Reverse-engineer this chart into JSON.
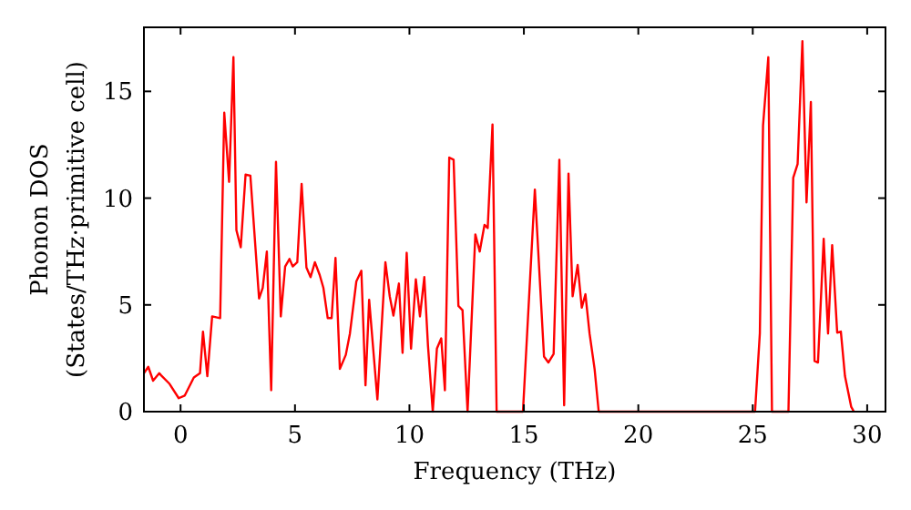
{
  "chart_data": {
    "type": "line",
    "xlabel": "Frequency (THz)",
    "ylabel": "Phonon DOS\n(States/THz·primitive cell)",
    "xlim": [
      -1.6,
      30.8
    ],
    "ylim": [
      0,
      18
    ],
    "xticks": [
      0,
      5,
      10,
      15,
      20,
      25,
      30
    ],
    "yticks": [
      0,
      5,
      10,
      15
    ],
    "grid": false,
    "marker": "none",
    "line_style": "solid",
    "series": [
      {
        "color": "#ff0000",
        "x": [
          -1.6,
          -1.41,
          -1.2,
          -0.93,
          -0.85,
          -0.48,
          -0.08,
          0.18,
          0.58,
          0.85,
          0.98,
          1.17,
          1.38,
          1.73,
          1.91,
          2.12,
          2.31,
          2.44,
          2.63,
          2.84,
          3.05,
          3.43,
          3.59,
          3.77,
          3.96,
          4.17,
          4.38,
          4.57,
          4.76,
          4.9,
          5.1,
          5.29,
          5.5,
          5.68,
          5.87,
          6.08,
          6.24,
          6.43,
          6.6,
          6.77,
          6.96,
          7.22,
          7.4,
          7.68,
          7.9,
          8.08,
          8.24,
          8.6,
          8.95,
          9.14,
          9.3,
          9.54,
          9.7,
          9.88,
          10.07,
          10.28,
          10.46,
          10.65,
          10.81,
          11.02,
          11.2,
          11.39,
          11.55,
          11.74,
          11.93,
          12.14,
          12.32,
          12.54,
          12.88,
          13.07,
          13.28,
          13.42,
          13.63,
          13.81,
          14.96,
          15.48,
          15.88,
          16.07,
          16.3,
          16.55,
          16.76,
          16.95,
          17.13,
          17.35,
          17.53,
          17.69,
          17.87,
          18.09,
          18.27,
          25.1,
          25.31,
          25.45,
          25.68,
          25.84,
          26.56,
          26.77,
          26.96,
          27.17,
          27.35,
          27.54,
          27.7,
          27.85,
          28.1,
          28.29,
          28.47,
          28.69,
          28.85,
          29.03,
          29.3,
          29.42
        ],
        "values": [
          1.8,
          2.1,
          1.45,
          1.8,
          1.7,
          1.3,
          0.63,
          0.75,
          1.6,
          1.8,
          3.75,
          1.66,
          4.46,
          4.38,
          14.0,
          10.76,
          16.6,
          8.5,
          7.7,
          11.1,
          11.05,
          5.3,
          5.8,
          7.5,
          1.0,
          11.7,
          4.46,
          6.8,
          7.15,
          6.8,
          7.0,
          10.67,
          6.75,
          6.3,
          7.0,
          6.4,
          5.8,
          4.38,
          4.38,
          7.2,
          2.0,
          2.66,
          3.66,
          6.1,
          6.6,
          1.23,
          5.24,
          0.57,
          7.0,
          5.4,
          4.5,
          6.0,
          2.75,
          7.44,
          2.95,
          6.2,
          4.46,
          6.3,
          3.1,
          0,
          2.95,
          3.43,
          1.0,
          11.9,
          11.8,
          4.95,
          4.75,
          0,
          8.3,
          7.5,
          8.75,
          8.6,
          13.45,
          0,
          0,
          10.4,
          2.58,
          2.3,
          2.7,
          11.8,
          0.3,
          11.15,
          5.4,
          6.87,
          4.87,
          5.5,
          3.66,
          2.0,
          0,
          0,
          3.66,
          13.4,
          16.6,
          0,
          0,
          10.96,
          11.6,
          17.35,
          9.8,
          14.5,
          2.37,
          2.3,
          8.1,
          3.66,
          7.8,
          3.7,
          3.75,
          1.66,
          0.23,
          0
        ]
      }
    ]
  }
}
